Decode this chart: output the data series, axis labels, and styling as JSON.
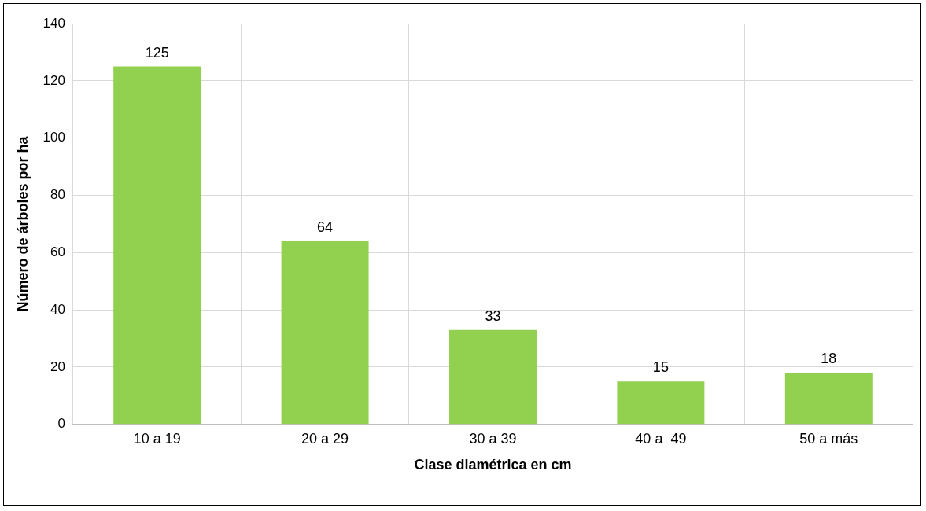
{
  "chart_data": {
    "type": "bar",
    "xlabel": "Clase diamétrica en cm",
    "ylabel": "Número de árboles por ha",
    "categories": [
      "10 a 19",
      "20 a 29",
      "30 a 39",
      "40 a  49",
      "50 a más"
    ],
    "values": [
      125,
      64,
      33,
      15,
      18
    ],
    "color": "#92d050",
    "ylim": [
      0,
      140
    ],
    "yticks": [
      0,
      20,
      40,
      60,
      80,
      100,
      120,
      140
    ],
    "grid": true,
    "data_labels": true
  }
}
